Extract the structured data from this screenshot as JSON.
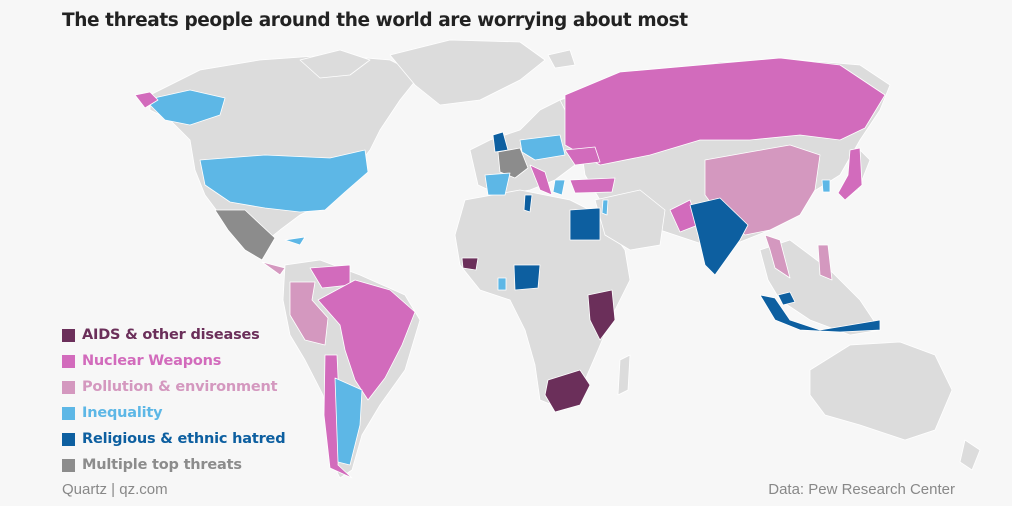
{
  "title": "The threats people around the world are worrying about most",
  "legend": [
    {
      "label": "AIDS & other diseases",
      "color": "#6b2f5a"
    },
    {
      "label": "Nuclear Weapons",
      "color": "#d26bbc"
    },
    {
      "label": "Pollution & environment",
      "color": "#d498bf"
    },
    {
      "label": "Inequality",
      "color": "#5db7e6"
    },
    {
      "label": "Religious & ethnic hatred",
      "color": "#0d5fa0"
    },
    {
      "label": "Multiple top threats",
      "color": "#8c8c8c"
    }
  ],
  "colors": {
    "land": "#dcdcdc",
    "background": "#f7f7f7"
  },
  "credit": "Quartz | qz.com",
  "source": "Data: Pew Research Center"
}
